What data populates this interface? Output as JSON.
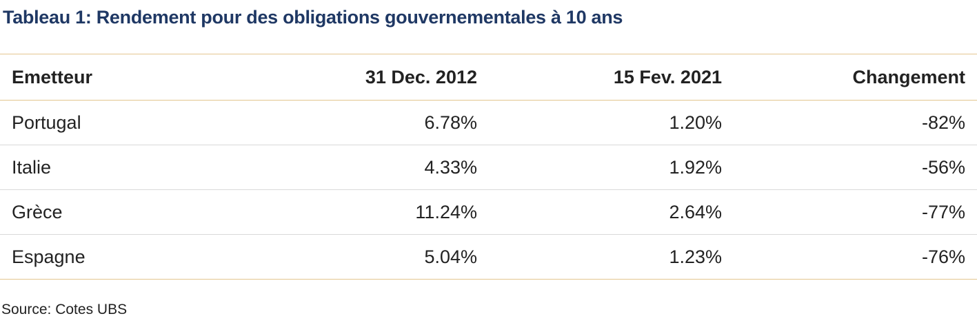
{
  "title": "Tableau 1: Rendement pour des obligations gouvernementales à 10 ans",
  "table": {
    "headers": [
      "Emetteur",
      "31 Dec. 2012",
      "15 Fev. 2021",
      "Changement"
    ],
    "rows": [
      [
        "Portugal",
        "6.78%",
        "1.20%",
        "-82%"
      ],
      [
        "Italie",
        "4.33%",
        "1.92%",
        "-56%"
      ],
      [
        "Grèce",
        "11.24%",
        "2.64%",
        "-77%"
      ],
      [
        "Espagne",
        "5.04%",
        "1.23%",
        "-76%"
      ]
    ]
  },
  "source": "Source: Cotes UBS",
  "colors": {
    "title": "#1f3864",
    "rule_gold": "#e3c58e",
    "rule_grey": "#d9d9d9",
    "text": "#222222"
  }
}
